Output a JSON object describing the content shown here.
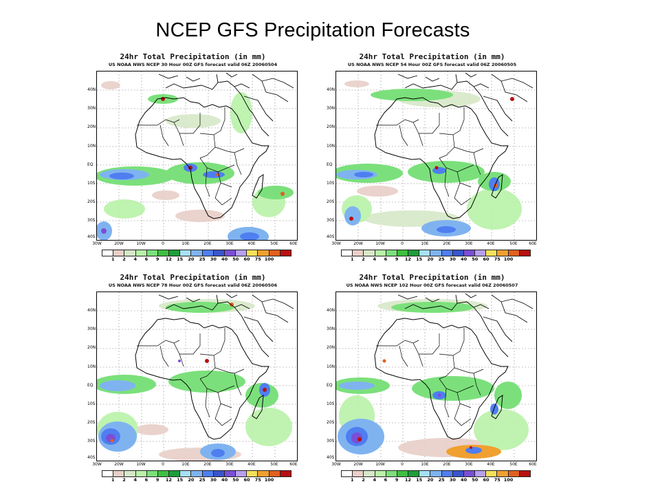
{
  "slide": {
    "title": "NCEP GFS Precipitation Forecasts"
  },
  "panels": [
    {
      "title": "24hr Total Precipitation (in mm)",
      "subtitle": "US NOAA NWS NCEP 30 Hour 00Z GFS forecast valid 06Z 20060504"
    },
    {
      "title": "24hr Total Precipitation (in mm)",
      "subtitle": "US NOAA NWS NCEP 54 Hour 00Z GFS forecast valid 06Z 20060505"
    },
    {
      "title": "24hr Total Precipitation (in mm)",
      "subtitle": "US NOAA NWS NCEP 78 Hour 00Z GFS forecast valid 06Z 20060506"
    },
    {
      "title": "24hr Total Precipitation (in mm)",
      "subtitle": "US NOAA NWS NCEP 102 Hour 00Z GFS forecast valid 06Z 20060507"
    }
  ],
  "axes": {
    "lat_labels": [
      "40N",
      "30N",
      "20N",
      "10N",
      "EQ",
      "10S",
      "20S",
      "30S",
      "40S"
    ],
    "lon_labels": [
      "30W",
      "20W",
      "10W",
      "0",
      "10E",
      "20E",
      "30E",
      "40E",
      "50E",
      "60E"
    ]
  },
  "colorbar": {
    "labels": [
      "1",
      "2",
      "4",
      "6",
      "9",
      "12",
      "15",
      "20",
      "25",
      "30",
      "40",
      "50",
      "60",
      "75",
      "100"
    ],
    "colors": [
      "#ffffff",
      "#e8cfc8",
      "#d7e8c8",
      "#b9f2a8",
      "#7be07b",
      "#3fbf3f",
      "#1e9e3a",
      "#a6e0f5",
      "#7fb3f0",
      "#4f7ef0",
      "#3a55cc",
      "#7a4fd6",
      "#b6a0f0",
      "#f5e05a",
      "#f0a030",
      "#e06020",
      "#b81010"
    ]
  }
}
